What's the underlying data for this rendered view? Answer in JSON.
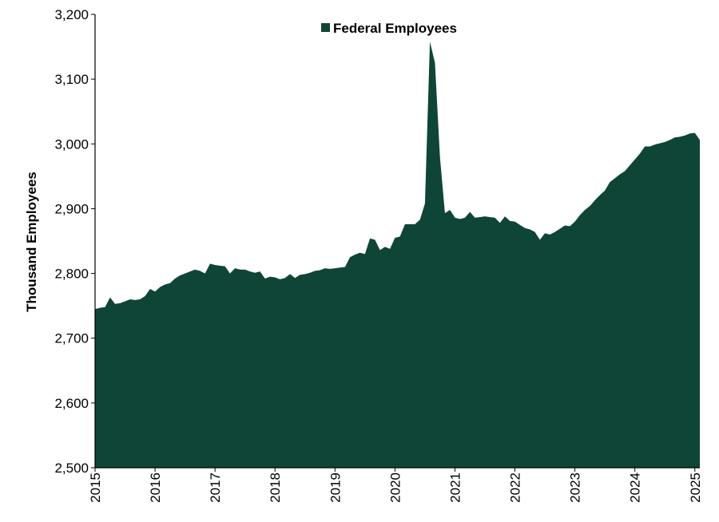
{
  "chart_data": {
    "type": "area",
    "title": "",
    "xlabel": "",
    "ylabel": "Thousand Employees",
    "ylim": [
      2500,
      3200
    ],
    "yticks": [
      2500,
      2600,
      2700,
      2800,
      2900,
      3000,
      3100,
      3200
    ],
    "ytick_labels": [
      "2,500",
      "2,600",
      "2,700",
      "2,800",
      "2,900",
      "3,000",
      "3,100",
      "3,200"
    ],
    "xlim": [
      2015.0,
      2025.083
    ],
    "xticks": [
      2015,
      2016,
      2017,
      2018,
      2019,
      2020,
      2021,
      2022,
      2023,
      2024,
      2025
    ],
    "xtick_labels": [
      "2015",
      "2016",
      "2017",
      "2018",
      "2019",
      "2020",
      "2021",
      "2022",
      "2023",
      "2024",
      "2025"
    ],
    "grid": false,
    "legend_position": "top-center",
    "series": [
      {
        "name": "Federal Employees",
        "color": "#0f4536",
        "x": [
          2015.0,
          2015.083,
          2015.167,
          2015.25,
          2015.333,
          2015.417,
          2015.5,
          2015.583,
          2015.667,
          2015.75,
          2015.833,
          2015.917,
          2016.0,
          2016.083,
          2016.167,
          2016.25,
          2016.333,
          2016.417,
          2016.5,
          2016.583,
          2016.667,
          2016.75,
          2016.833,
          2016.917,
          2017.0,
          2017.083,
          2017.167,
          2017.25,
          2017.333,
          2017.417,
          2017.5,
          2017.583,
          2017.667,
          2017.75,
          2017.833,
          2017.917,
          2018.0,
          2018.083,
          2018.167,
          2018.25,
          2018.333,
          2018.417,
          2018.5,
          2018.583,
          2018.667,
          2018.75,
          2018.833,
          2018.917,
          2019.0,
          2019.083,
          2019.167,
          2019.25,
          2019.333,
          2019.417,
          2019.5,
          2019.583,
          2019.667,
          2019.75,
          2019.833,
          2019.917,
          2020.0,
          2020.083,
          2020.167,
          2020.25,
          2020.333,
          2020.417,
          2020.5,
          2020.583,
          2020.667,
          2020.75,
          2020.833,
          2020.917,
          2021.0,
          2021.083,
          2021.167,
          2021.25,
          2021.333,
          2021.417,
          2021.5,
          2021.583,
          2021.667,
          2021.75,
          2021.833,
          2021.917,
          2022.0,
          2022.083,
          2022.167,
          2022.25,
          2022.333,
          2022.417,
          2022.5,
          2022.583,
          2022.667,
          2022.75,
          2022.833,
          2022.917,
          2023.0,
          2023.083,
          2023.167,
          2023.25,
          2023.333,
          2023.417,
          2023.5,
          2023.583,
          2023.667,
          2023.75,
          2023.833,
          2023.917,
          2024.0,
          2024.083,
          2024.167,
          2024.25,
          2024.333,
          2024.417,
          2024.5,
          2024.583,
          2024.667,
          2024.75,
          2024.833,
          2024.917,
          2025.0,
          2025.083
        ],
        "values": [
          2745,
          2747,
          2748,
          2763,
          2753,
          2754,
          2757,
          2760,
          2759,
          2760,
          2765,
          2776,
          2772,
          2779,
          2783,
          2785,
          2792,
          2797,
          2800,
          2803,
          2806,
          2804,
          2800,
          2815,
          2813,
          2812,
          2811,
          2800,
          2808,
          2806,
          2806,
          2803,
          2801,
          2803,
          2792,
          2795,
          2794,
          2791,
          2793,
          2799,
          2793,
          2798,
          2799,
          2801,
          2804,
          2805,
          2808,
          2807,
          2808,
          2809,
          2810,
          2825,
          2829,
          2832,
          2830,
          2854,
          2852,
          2836,
          2841,
          2838,
          2855,
          2857,
          2876,
          2876,
          2876,
          2883,
          2908,
          3158,
          3125,
          2980,
          2893,
          2898,
          2886,
          2884,
          2886,
          2895,
          2886,
          2887,
          2888,
          2887,
          2886,
          2878,
          2888,
          2881,
          2880,
          2875,
          2870,
          2868,
          2864,
          2852,
          2862,
          2860,
          2864,
          2869,
          2874,
          2873,
          2880,
          2890,
          2898,
          2904,
          2913,
          2921,
          2928,
          2941,
          2947,
          2953,
          2958,
          2967,
          2976,
          2985,
          2996,
          2996,
          2999,
          3001,
          3003,
          3006,
          3010,
          3011,
          3013,
          3016,
          3017,
          3006
        ]
      }
    ]
  }
}
